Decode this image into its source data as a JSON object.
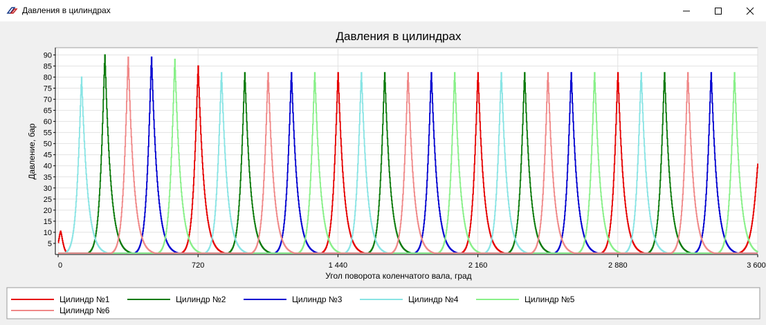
{
  "window": {
    "title": "Давления в цилиндрах"
  },
  "chart_data": {
    "type": "line",
    "title": "Давления в цилиндрах",
    "xlabel": "Угол поворота коленчатого вала, град",
    "ylabel": "Давление, бар",
    "xlim": [
      0,
      3600
    ],
    "ylim": [
      0,
      92
    ],
    "xticks": [
      {
        "value": 0,
        "label": "0"
      },
      {
        "value": 720,
        "label": "720"
      },
      {
        "value": 1440,
        "label": "1 440"
      },
      {
        "value": 2160,
        "label": "2 160"
      },
      {
        "value": 2880,
        "label": "2 880"
      },
      {
        "value": 3600,
        "label": "3 600"
      }
    ],
    "yticks": [
      5,
      10,
      15,
      20,
      25,
      30,
      35,
      40,
      45,
      50,
      55,
      60,
      65,
      70,
      75,
      80,
      85,
      90
    ],
    "grid": true,
    "legend_position": "bottom",
    "series": [
      {
        "name": "Цилиндр №1",
        "color": "#e60000",
        "peaks": [
          {
            "x": 720,
            "y": 85
          },
          {
            "x": 1440,
            "y": 82
          },
          {
            "x": 2160,
            "y": 82
          },
          {
            "x": 2880,
            "y": 82
          }
        ],
        "partial_start": {
          "x": 0,
          "y": 10.5
        },
        "partial_end": {
          "x": 3600,
          "y": 41
        }
      },
      {
        "name": "Цилиндр №2",
        "color": "#0a7a0a",
        "peaks": [
          {
            "x": 240,
            "y": 90
          },
          {
            "x": 960,
            "y": 82
          },
          {
            "x": 1680,
            "y": 82
          },
          {
            "x": 2400,
            "y": 82
          },
          {
            "x": 3120,
            "y": 82
          }
        ]
      },
      {
        "name": "Цилиндр №3",
        "color": "#0000d0",
        "peaks": [
          {
            "x": 480,
            "y": 89
          },
          {
            "x": 1200,
            "y": 82
          },
          {
            "x": 1920,
            "y": 82
          },
          {
            "x": 2640,
            "y": 82
          },
          {
            "x": 3360,
            "y": 82
          }
        ]
      },
      {
        "name": "Цилиндр №4",
        "color": "#88e4e4",
        "peaks": [
          {
            "x": 120,
            "y": 80
          },
          {
            "x": 840,
            "y": 82
          },
          {
            "x": 1560,
            "y": 82
          },
          {
            "x": 2280,
            "y": 82
          },
          {
            "x": 3000,
            "y": 82
          }
        ]
      },
      {
        "name": "Цилиндр №5",
        "color": "#88f088",
        "peaks": [
          {
            "x": 600,
            "y": 88
          },
          {
            "x": 1320,
            "y": 82
          },
          {
            "x": 2040,
            "y": 82
          },
          {
            "x": 2760,
            "y": 82
          },
          {
            "x": 3480,
            "y": 82
          }
        ]
      },
      {
        "name": "Цилиндр №6",
        "color": "#f08888",
        "peaks": [
          {
            "x": 360,
            "y": 89
          },
          {
            "x": 1080,
            "y": 82
          },
          {
            "x": 1800,
            "y": 82
          },
          {
            "x": 2520,
            "y": 82
          },
          {
            "x": 3240,
            "y": 82
          }
        ]
      }
    ]
  }
}
